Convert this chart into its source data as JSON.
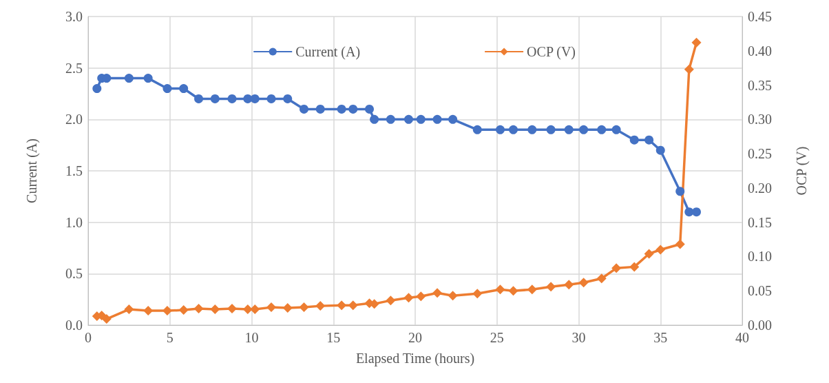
{
  "chart_data": {
    "type": "line",
    "xlabel": "Elapsed Time (hours)",
    "ylabel": "Current (A)",
    "y2label": "OCP (V)",
    "x": [
      0.54,
      0.83,
      1.13,
      2.5,
      3.67,
      4.84,
      5.84,
      6.76,
      7.76,
      8.8,
      9.76,
      10.2,
      11.2,
      12.2,
      13.2,
      14.2,
      15.5,
      16.2,
      17.2,
      17.5,
      18.5,
      19.6,
      20.35,
      21.35,
      22.3,
      23.8,
      25.2,
      26.0,
      27.15,
      28.3,
      29.4,
      30.3,
      31.4,
      32.3,
      33.4,
      34.3,
      35.0,
      36.2,
      36.75,
      37.2
    ],
    "series": [
      {
        "name": "Current (A)",
        "color": "#4472c4",
        "marker": "circle",
        "values": [
          2.3,
          2.4,
          2.4,
          2.4,
          2.4,
          2.3,
          2.3,
          2.2,
          2.2,
          2.2,
          2.2,
          2.2,
          2.2,
          2.2,
          2.1,
          2.1,
          2.1,
          2.1,
          2.1,
          2.0,
          2.0,
          2.0,
          2.0,
          2.0,
          2.0,
          1.9,
          1.9,
          1.9,
          1.9,
          1.9,
          1.9,
          1.9,
          1.9,
          1.9,
          1.8,
          1.8,
          1.7,
          1.3,
          1.1,
          1.1
        ]
      },
      {
        "name": "OCP (V)",
        "color": "#ed7d31",
        "marker": "diamond",
        "axis": "y2",
        "values": [
          0.013,
          0.014,
          0.009,
          0.023,
          0.021,
          0.021,
          0.022,
          0.024,
          0.023,
          0.024,
          0.023,
          0.023,
          0.026,
          0.025,
          0.026,
          0.028,
          0.029,
          0.029,
          0.032,
          0.031,
          0.036,
          0.04,
          0.042,
          0.047,
          0.043,
          0.046,
          0.052,
          0.05,
          0.052,
          0.056,
          0.059,
          0.062,
          0.068,
          0.083,
          0.085,
          0.104,
          0.11,
          0.118,
          0.373,
          0.412
        ]
      }
    ],
    "xlim": [
      0,
      40
    ],
    "xticks": [
      0,
      5,
      10,
      15,
      20,
      25,
      30,
      35,
      40
    ],
    "ylim": [
      0,
      3
    ],
    "yticks": [
      {
        "value": 0,
        "label": "0.0"
      },
      {
        "value": 0.5,
        "label": "0.5"
      },
      {
        "value": 1,
        "label": "1.0"
      },
      {
        "value": 1.5,
        "label": "1.5"
      },
      {
        "value": 2,
        "label": "2.0"
      },
      {
        "value": 2.5,
        "label": "2.5"
      },
      {
        "value": 3,
        "label": "3.0"
      }
    ],
    "y2lim": [
      0,
      0.45
    ],
    "y2ticks": [
      {
        "value": 0,
        "label": "0.00"
      },
      {
        "value": 0.05,
        "label": "0.05"
      },
      {
        "value": 0.1,
        "label": "0.10"
      },
      {
        "value": 0.15,
        "label": "0.15"
      },
      {
        "value": 0.2,
        "label": "0.20"
      },
      {
        "value": 0.25,
        "label": "0.25"
      },
      {
        "value": 0.3,
        "label": "0.30"
      },
      {
        "value": 0.35,
        "label": "0.35"
      },
      {
        "value": 0.4,
        "label": "0.40"
      },
      {
        "value": 0.45,
        "label": "0.45"
      }
    ],
    "grid": true,
    "legend": "top",
    "line_style": "solid"
  }
}
